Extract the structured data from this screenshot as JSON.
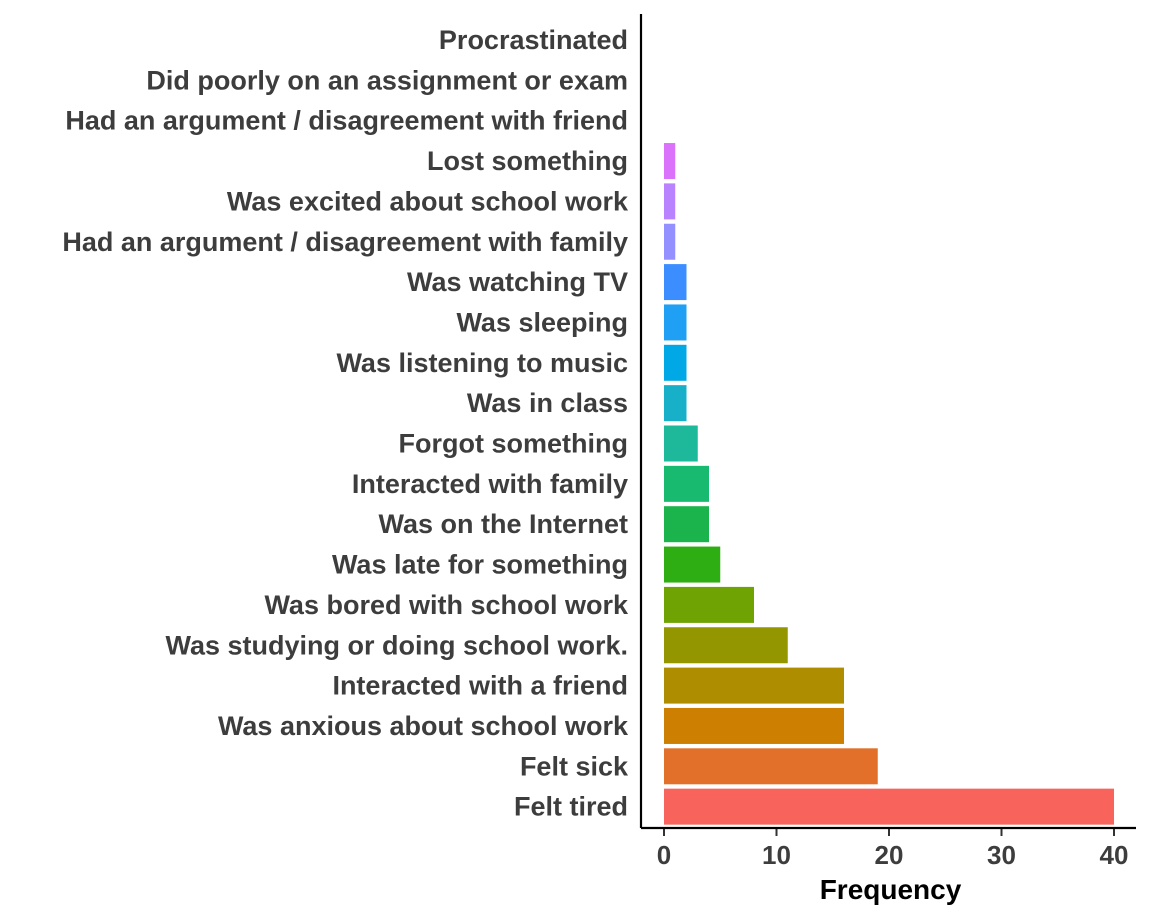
{
  "chart_data": {
    "type": "bar",
    "orientation": "horizontal",
    "categories": [
      "Procrastinated",
      "Did poorly on an assignment or exam",
      "Had an argument / disagreement with friend",
      "Lost something",
      "Was excited about school work",
      "Had an argument / disagreement with family",
      "Was watching TV",
      "Was sleeping",
      "Was listening to music",
      "Was in class",
      "Forgot something",
      "Interacted with family",
      "Was on the Internet",
      "Was late for something",
      "Was bored with school work",
      "Was studying or doing school work.",
      "Interacted with a friend",
      "Was anxious about school work",
      "Felt sick",
      "Felt tired"
    ],
    "values": [
      0,
      0,
      0,
      1,
      1,
      1,
      2,
      2,
      2,
      2,
      3,
      4,
      4,
      5,
      8,
      11,
      16,
      16,
      19,
      40
    ],
    "colors": [
      "#FF61C3",
      "#F564E3",
      "#EB5FF0",
      "#DB72FB",
      "#B983FF",
      "#9590FF",
      "#3C8DFF",
      "#1FA0F4",
      "#00A9E6",
      "#17B0C8",
      "#1DB99A",
      "#17BA6E",
      "#1BB34B",
      "#2EAE13",
      "#6FA303",
      "#949600",
      "#AE8E00",
      "#CC7F00",
      "#E2702A",
      "#F8635C"
    ],
    "xlabel": "Frequency",
    "ylabel": "",
    "xlim": [
      -2,
      42
    ],
    "xticks": [
      0,
      10,
      20,
      30,
      40
    ],
    "grid": false,
    "legend": "none"
  }
}
